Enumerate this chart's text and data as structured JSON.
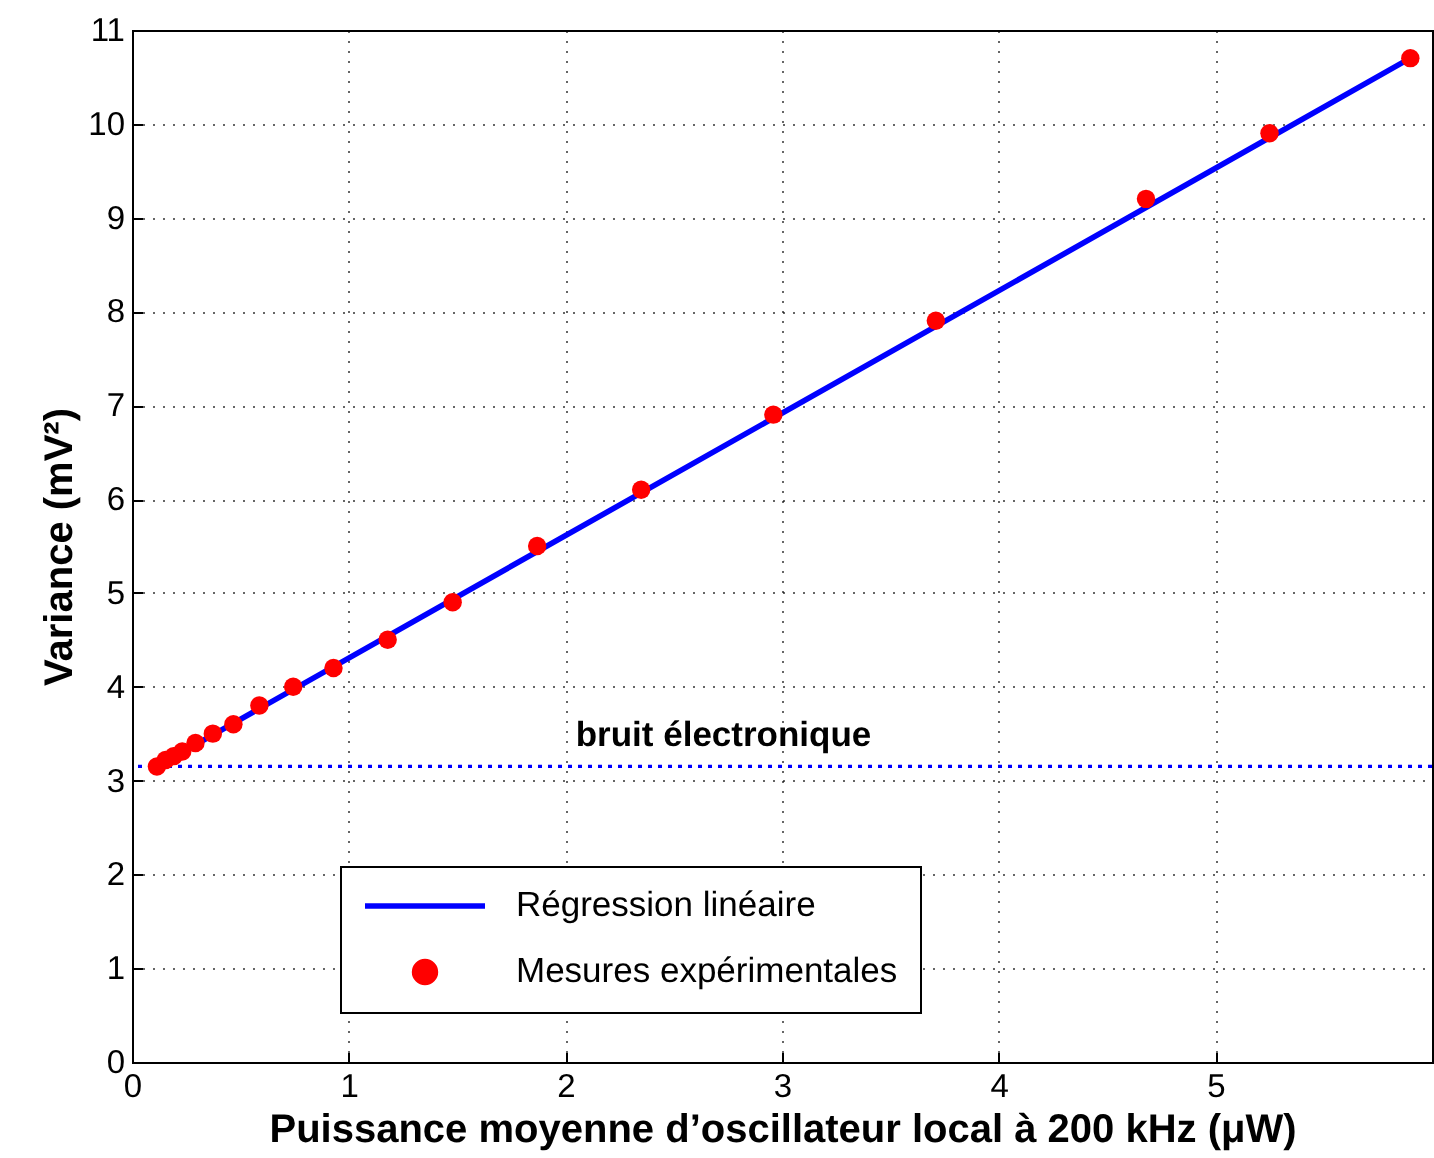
{
  "chart_data": {
    "type": "scatter",
    "xlabel": "Puissance moyenne d’oscillateur local à 200 kHz (μW)",
    "ylabel": "Variance (mV²)",
    "xlim": [
      0,
      6
    ],
    "ylim": [
      0,
      11
    ],
    "xticks": [
      0,
      1,
      2,
      3,
      4,
      5
    ],
    "yticks": [
      0,
      1,
      2,
      3,
      4,
      5,
      6,
      7,
      8,
      9,
      10,
      11
    ],
    "grid": true,
    "legend": "bottom left",
    "series": [
      {
        "name": "Régression linéaire",
        "type": "line",
        "color": "#0000ff",
        "x": [
          0.115,
          5.9
        ],
        "values": [
          3.15,
          10.7
        ]
      },
      {
        "name": "Mesures expérimentales",
        "type": "scatter",
        "marker": "circle",
        "color": "#ff0000",
        "x": [
          0.115,
          0.155,
          0.192,
          0.232,
          0.293,
          0.373,
          0.468,
          0.588,
          0.744,
          0.93,
          1.18,
          1.48,
          1.87,
          2.35,
          2.96,
          3.71,
          4.68,
          5.25,
          5.9
        ],
        "values": [
          3.15,
          3.22,
          3.26,
          3.31,
          3.4,
          3.5,
          3.6,
          3.8,
          4.0,
          4.2,
          4.5,
          4.9,
          5.5,
          6.1,
          6.9,
          7.9,
          9.2,
          9.9,
          10.7
        ]
      }
    ],
    "ref_lines": [
      {
        "axis": "y",
        "value": 3.15,
        "label": "bruit électronique",
        "color": "#0000ff",
        "line_style": "dotted"
      }
    ]
  }
}
